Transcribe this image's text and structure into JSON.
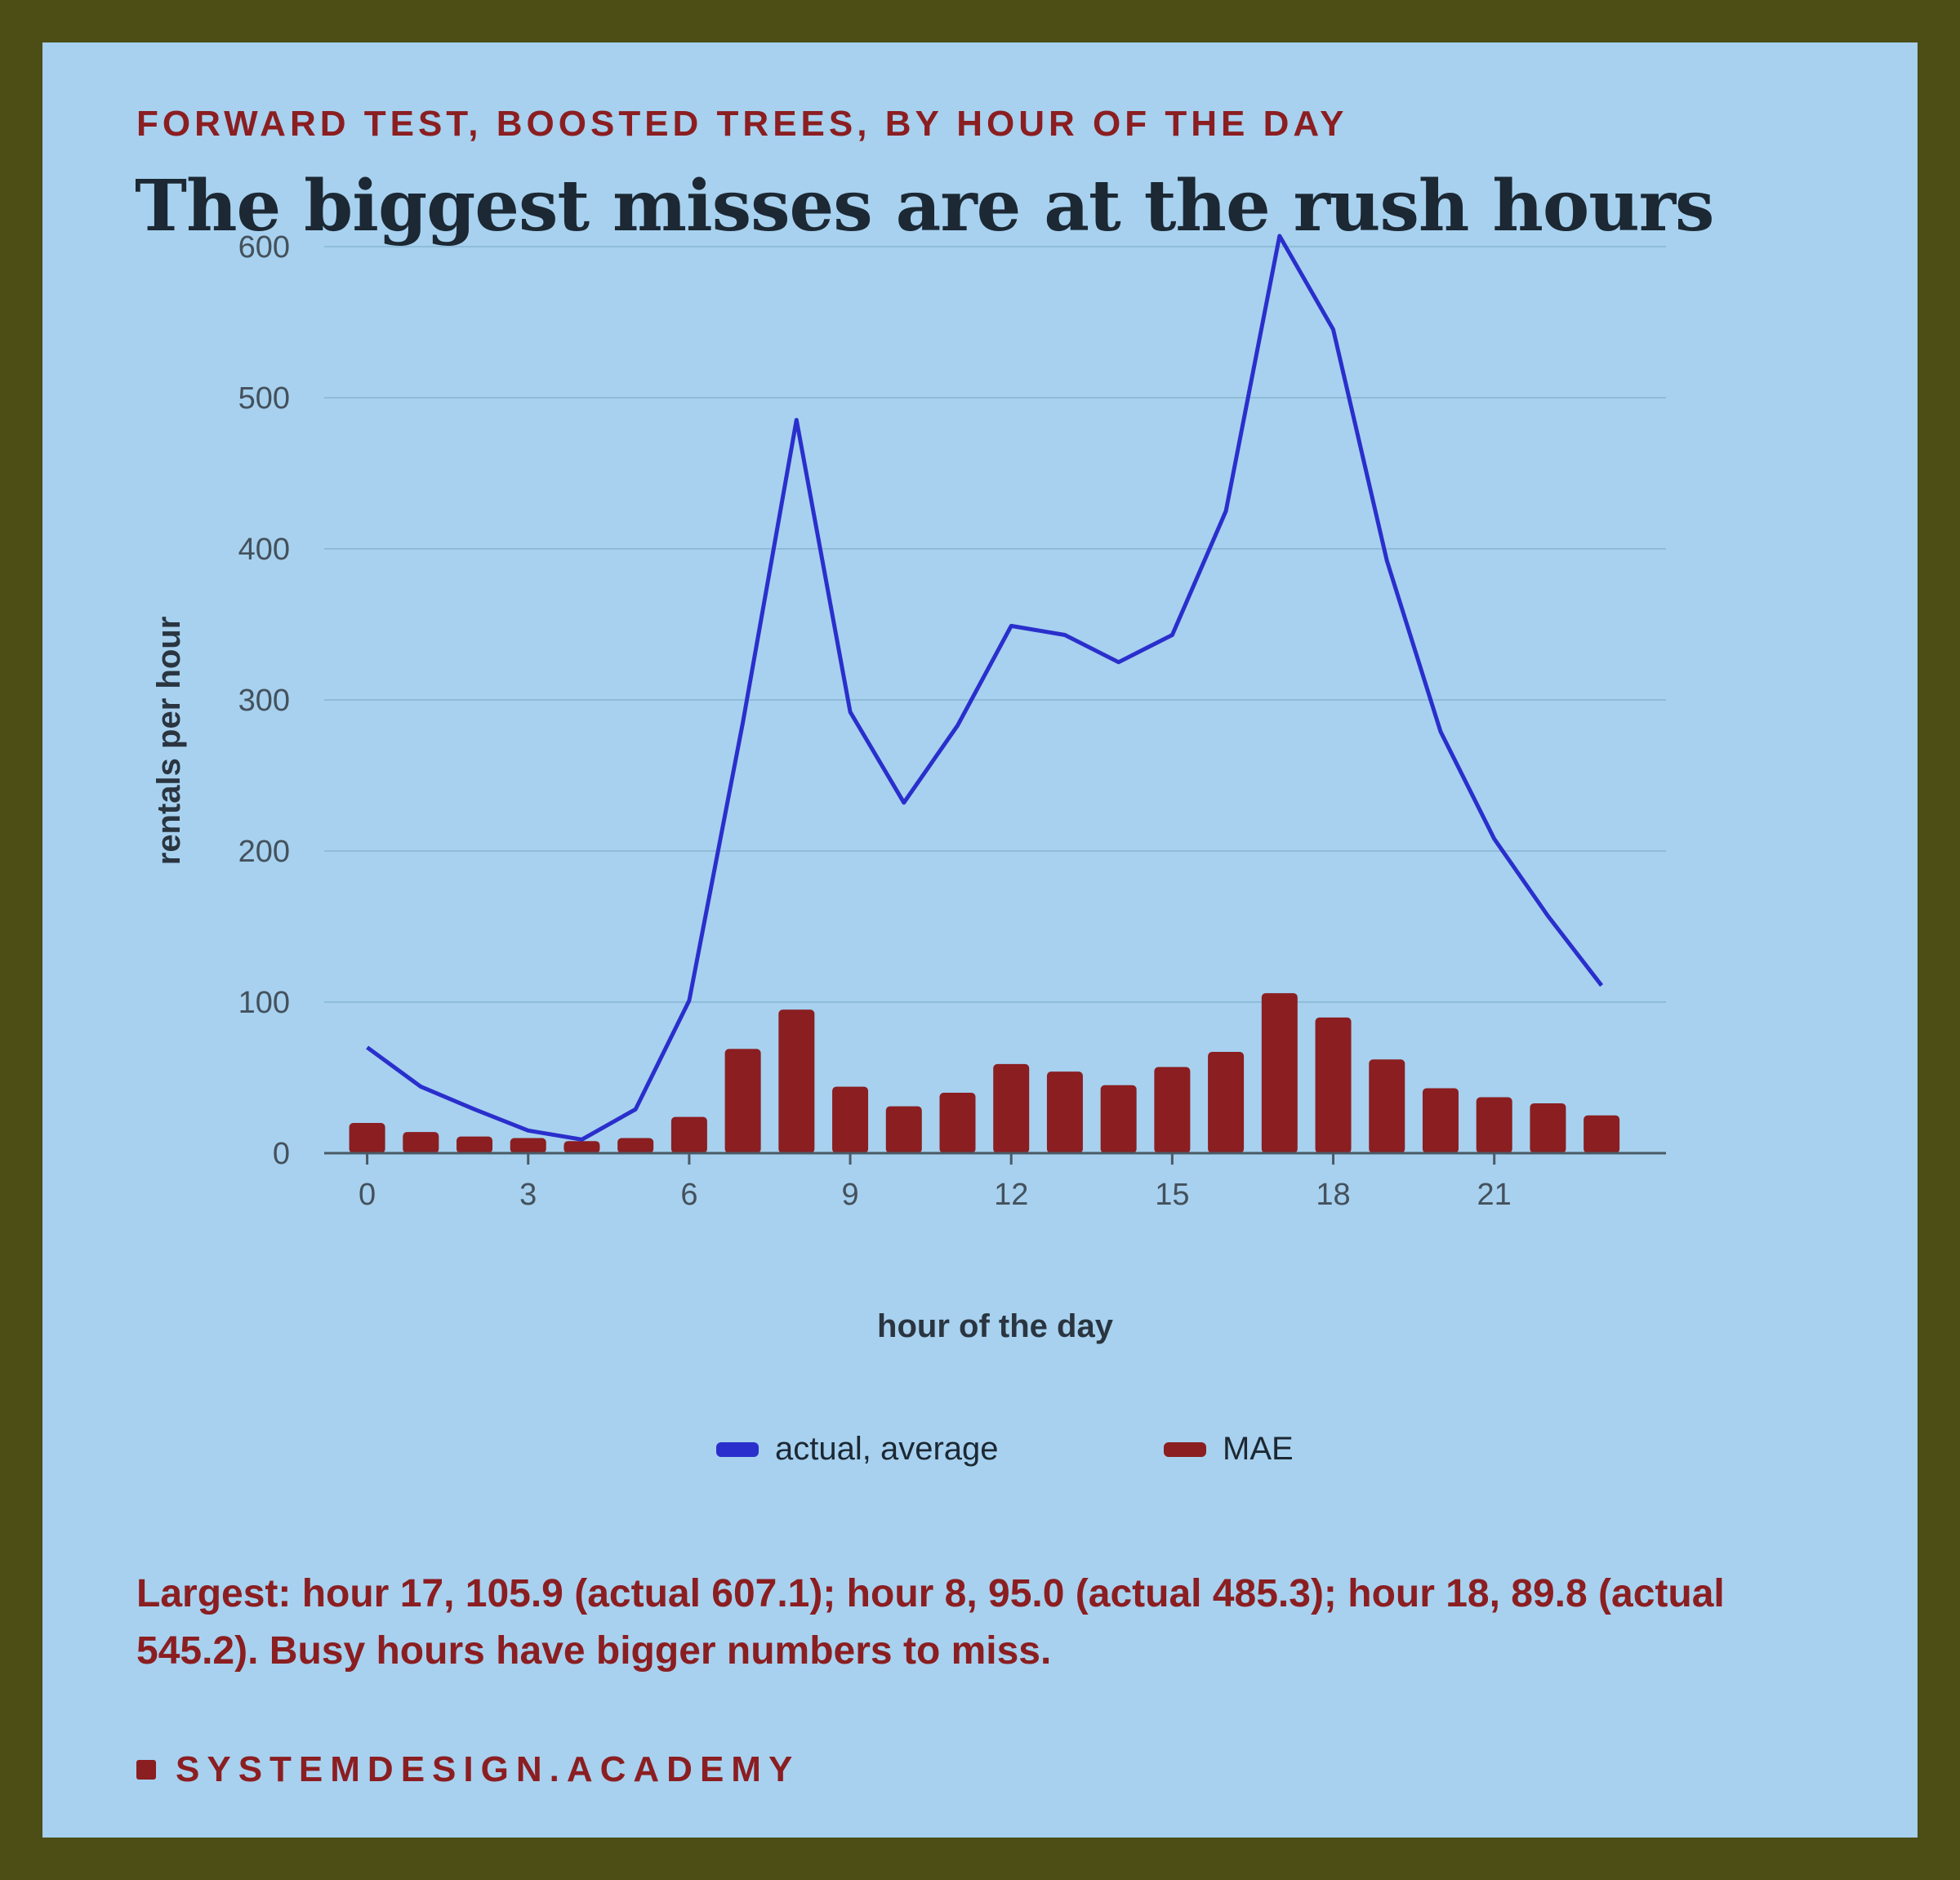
{
  "eyebrow": "FORWARD TEST, BOOSTED TREES, BY HOUR OF THE DAY",
  "title": "The biggest misses are at the rush hours",
  "note": "Largest: hour 17, 105.9 (actual 607.1); hour 8, 95.0 (actual 485.3); hour 18, 89.8 (actual 545.2). Busy hours have bigger numbers to miss.",
  "footer": "SYSTEMDESIGN.ACADEMY",
  "colors": {
    "frame": "#4d4d16",
    "background": "#a7d1ef",
    "line": "#2a2fcc",
    "bar": "#8b1e21",
    "grid": "#8fbcd8",
    "axis": "#4a5a66"
  },
  "chart_data": {
    "type": "bar",
    "xlabel": "hour of the day",
    "ylabel": "rentals per hour",
    "xlim": [
      -0.8,
      24.2
    ],
    "ylim": [
      0,
      600
    ],
    "yticks": [
      0,
      100,
      200,
      300,
      400,
      500,
      600
    ],
    "xticks": [
      0,
      3,
      6,
      9,
      12,
      15,
      18,
      21
    ],
    "grid": true,
    "legend_position": "bottom",
    "x": [
      0,
      1,
      2,
      3,
      4,
      5,
      6,
      7,
      8,
      9,
      10,
      11,
      12,
      13,
      14,
      15,
      16,
      17,
      18,
      19,
      20,
      21,
      22,
      23
    ],
    "series": [
      {
        "name": "actual, average",
        "type": "line",
        "values": [
          70,
          44,
          29,
          15,
          9,
          29,
          101,
          285,
          485.3,
          292,
          232,
          283,
          349,
          343,
          325,
          343,
          425,
          607.1,
          545.2,
          392,
          279,
          208,
          157,
          111
        ]
      },
      {
        "name": "MAE",
        "type": "bar",
        "values": [
          20,
          14,
          11,
          10,
          8,
          10,
          24,
          69,
          95.0,
          44,
          31,
          40,
          59,
          54,
          45,
          57,
          67,
          105.9,
          89.8,
          62,
          43,
          37,
          33,
          25
        ]
      }
    ]
  }
}
